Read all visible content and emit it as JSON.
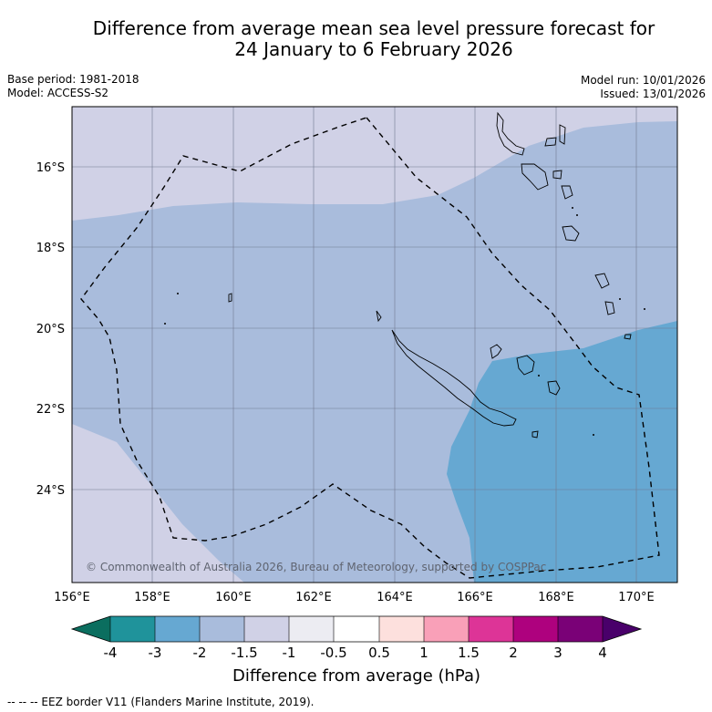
{
  "title": {
    "line1": "Difference from average mean sea level pressure forecast for",
    "line2": "24 January to 6 February 2026"
  },
  "meta": {
    "base_period": "Base period: 1981-2018",
    "model": "Model: ACCESS-S2",
    "model_run": "Model run: 10/01/2026",
    "issued": "Issued: 13/01/2026"
  },
  "map": {
    "longitude_labels": [
      "156°E",
      "158°E",
      "160°E",
      "162°E",
      "164°E",
      "166°E",
      "168°E",
      "170°E"
    ],
    "latitude_labels": [
      "16°S",
      "18°S",
      "20°S",
      "22°S",
      "24°S"
    ],
    "copyright": "© Commonwealth of Australia 2026, Bureau of Meteorology, supported by COSPPac"
  },
  "colorbar": {
    "tick_labels": [
      "-4",
      "-3",
      "-2",
      "-1.5",
      "-1",
      "-0.5",
      "0.5",
      "1",
      "1.5",
      "2",
      "3",
      "4"
    ],
    "colors": {
      "under": "#0b6e5f",
      "c1": "#1f939b",
      "c2": "#66a8d2",
      "c3": "#a9bcdc",
      "c4": "#d0d1e6",
      "c5": "#ececf2",
      "c6": "#ffffff",
      "c7": "#fde0dd",
      "c8": "#f9a0b8",
      "c9": "#dd3497",
      "c10": "#ae017e",
      "c11": "#7a0177",
      "over": "#49006a"
    },
    "label": "Difference from average (hPa)"
  },
  "footer": {
    "eez_note": "--  --  -- EEZ border V11 (Flanders Marine Institute, 2019)."
  }
}
